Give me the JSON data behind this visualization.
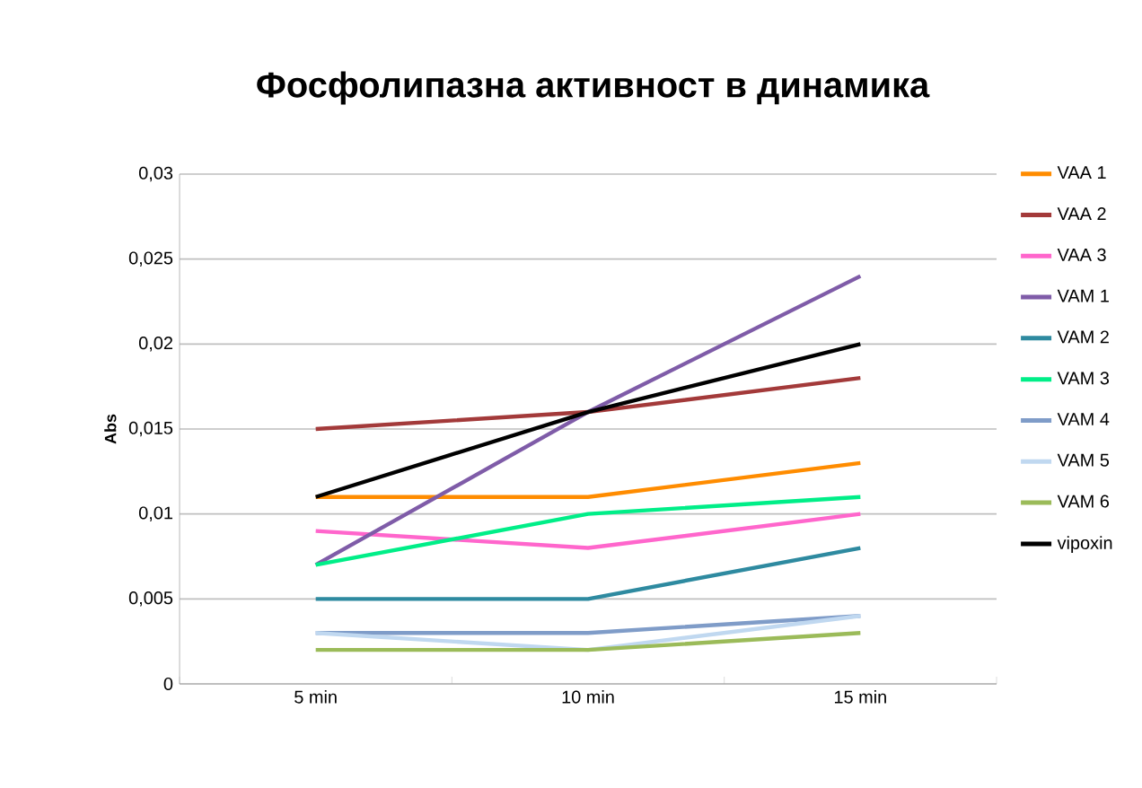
{
  "chart_data": {
    "type": "line",
    "title": "Фосфолипазна активност в динамика",
    "ylabel": "Abs",
    "categories": [
      "5 min",
      "10 min",
      "15 min"
    ],
    "series": [
      {
        "name": "VAA 1",
        "color": "#ff8c00",
        "values": [
          0.011,
          0.011,
          0.013
        ]
      },
      {
        "name": "VAA 2",
        "color": "#a33a3a",
        "values": [
          0.015,
          0.016,
          0.018
        ]
      },
      {
        "name": "VAA 3",
        "color": "#ff66cc",
        "values": [
          0.009,
          0.008,
          0.01
        ]
      },
      {
        "name": "VAM 1",
        "color": "#7f5ca8",
        "values": [
          0.007,
          0.016,
          0.024
        ]
      },
      {
        "name": "VAM 2",
        "color": "#2e8aa0",
        "values": [
          0.005,
          0.005,
          0.008
        ]
      },
      {
        "name": "VAM 3",
        "color": "#00ee88",
        "values": [
          0.007,
          0.01,
          0.011
        ]
      },
      {
        "name": "VAM 4",
        "color": "#7f9cc8",
        "values": [
          0.003,
          0.003,
          0.004
        ]
      },
      {
        "name": "VAM 5",
        "color": "#c0d8f0",
        "values": [
          0.003,
          0.002,
          0.004
        ]
      },
      {
        "name": "VAM 6",
        "color": "#9bbb59",
        "values": [
          0.002,
          0.002,
          0.003
        ]
      },
      {
        "name": "vipoxin",
        "color": "#000000",
        "values": [
          0.011,
          0.016,
          0.02
        ]
      }
    ],
    "ylim": [
      0,
      0.03
    ],
    "yticks": [
      {
        "value": 0,
        "label": "0"
      },
      {
        "value": 0.005,
        "label": "0,005"
      },
      {
        "value": 0.01,
        "label": "0,01"
      },
      {
        "value": 0.015,
        "label": "0,015"
      },
      {
        "value": 0.02,
        "label": "0,02"
      },
      {
        "value": 0.025,
        "label": "0,025"
      },
      {
        "value": 0.03,
        "label": "0,03"
      }
    ],
    "grid": "y",
    "legend": "right",
    "marker": "none",
    "line_style": "solid"
  }
}
